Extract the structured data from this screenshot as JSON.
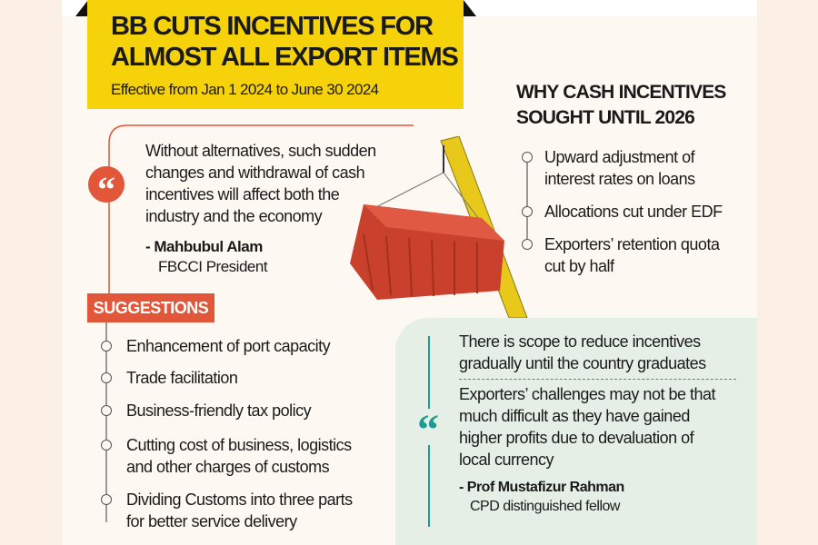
{
  "header": {
    "title_line1": "BB CUTS INCENTIVES FOR",
    "title_line2": "ALMOST ALL EXPORT ITEMS",
    "subtitle": "Effective from Jan 1 2024 to June 30 2024"
  },
  "quote1": {
    "lines": [
      "Without alternatives, such sudden",
      "changes and withdrawal of cash",
      "incentives will affect both the",
      "industry and the economy"
    ],
    "author": "- Mahbubul Alam",
    "role": "FBCCI President"
  },
  "suggestions": {
    "label": "SUGGESTIONS",
    "items": [
      [
        "Enhancement of port capacity"
      ],
      [
        "Trade facilitation"
      ],
      [
        "Business-friendly tax policy"
      ],
      [
        "Cutting cost of business, logistics",
        "and other charges of customs"
      ],
      [
        "Dividing Customs into three parts",
        "for better service delivery"
      ]
    ]
  },
  "why": {
    "title_line1": "WHY CASH INCENTIVES",
    "title_line2": "SOUGHT UNTIL 2026",
    "items": [
      [
        "Upward adjustment of",
        "interest rates on loans"
      ],
      [
        "Allocations cut under EDF"
      ],
      [
        "Exporters’ retention quota",
        "cut by half"
      ]
    ]
  },
  "quote2": {
    "part1": [
      "There is scope to reduce incentives",
      "gradually until the country graduates"
    ],
    "part2": [
      "Exporters’ challenges may not be that",
      "much difficult as they have gained",
      "higher profits due to devaluation of",
      "local currency"
    ],
    "author": "- Prof Mustafizur Rahman",
    "role": "CPD distinguished fellow"
  },
  "colors": {
    "yellow": "#f5d20a",
    "orange": "#e2573a",
    "teal": "#1f9a92",
    "green_panel": "#e6efe6"
  }
}
